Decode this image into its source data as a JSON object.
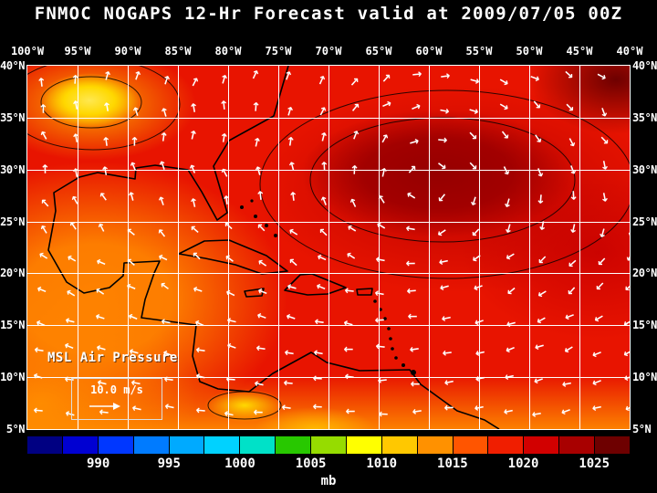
{
  "title": "FNMOC NOGAPS 12-Hr Forecast valid at 2009/07/05 00Z",
  "map": {
    "field_label": "MSL Air Pressure",
    "wind_legend_label": "10.0 m/s",
    "arrow_glyph": "→",
    "lon_labels": [
      "100°W",
      "95°W",
      "90°W",
      "85°W",
      "80°W",
      "75°W",
      "70°W",
      "65°W",
      "60°W",
      "55°W",
      "50°W",
      "45°W",
      "40°W"
    ],
    "lat_labels": [
      "40°N",
      "35°N",
      "30°N",
      "25°N",
      "20°N",
      "15°N",
      "10°N",
      "5°N"
    ],
    "grid_color": "#ffffff",
    "arrow_color": "#ffffff",
    "coastline_color": "#000000"
  },
  "colorbar": {
    "unit": "mb",
    "tick_values": [
      990,
      995,
      1000,
      1005,
      1010,
      1015,
      1020,
      1025
    ],
    "value_range": [
      985,
      1027.5
    ],
    "segment_colors": [
      "#000082",
      "#0000d2",
      "#0037ff",
      "#007bff",
      "#00aaff",
      "#00d2ff",
      "#00e1c8",
      "#28c800",
      "#96dc00",
      "#ffff00",
      "#ffc800",
      "#ff9100",
      "#ff5500",
      "#f01e00",
      "#d20000",
      "#a80000",
      "#6e0000"
    ]
  },
  "chart_data": {
    "type": "heatmap",
    "title": "FNMOC NOGAPS 12-Hr Forecast valid at 2009/07/05 00Z",
    "center": "FNMOC",
    "model": "NOGAPS",
    "forecast_hour": 12,
    "valid": "2009/07/05 00Z",
    "field": "MSL Air Pressure",
    "unit": "mb",
    "x_ticks": [
      "100°W",
      "95°W",
      "90°W",
      "85°W",
      "80°W",
      "75°W",
      "70°W",
      "65°W",
      "60°W",
      "55°W",
      "50°W",
      "45°W",
      "40°W"
    ],
    "y_ticks": [
      "40°N",
      "35°N",
      "30°N",
      "25°N",
      "20°N",
      "15°N",
      "10°N",
      "5°N"
    ],
    "colorbar_ticks_mb": [
      990,
      995,
      1000,
      1005,
      1010,
      1015,
      1020,
      1025
    ],
    "wind_reference": "10.0 m/s",
    "overlays": [
      "white wind vector arrows",
      "black coastlines",
      "5-degree white lat/lon grid"
    ],
    "visual_summary": "Broad subtropical high (~1020-1024 mb, dark red) centered near 30N 55-65W with clockwise wind circulation; lower pressure (~1008-1012 mb, yellow/orange) over the US plains at top-left, the Gulf of Mexico/Mexico region, and near Panama/Colombia at bottom; easterly trade winds south of 20N; pressures increase eastward across the Atlantic."
  }
}
